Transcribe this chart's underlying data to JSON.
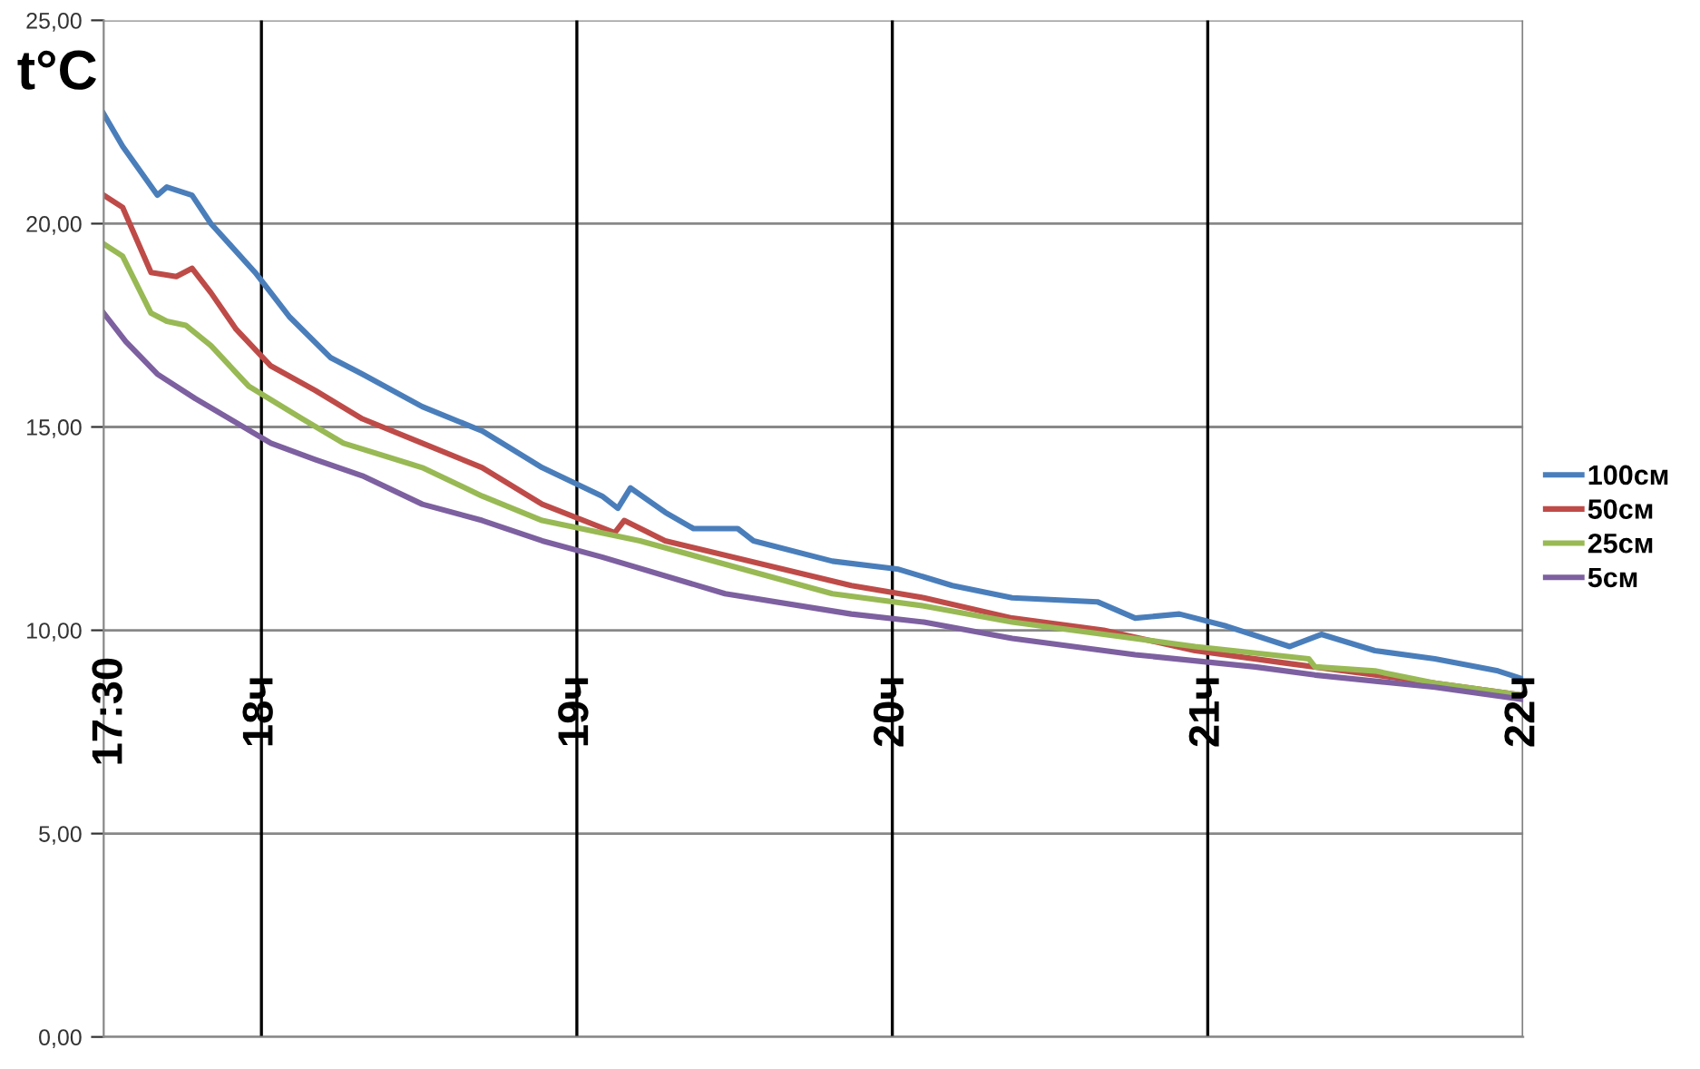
{
  "chart_data": {
    "type": "line",
    "ylabel": "t°C",
    "xlim": [
      17.5,
      22.0
    ],
    "ylim": [
      0,
      25
    ],
    "yticks": [
      {
        "value": 0,
        "label": "0,00"
      },
      {
        "value": 5,
        "label": "5,00"
      },
      {
        "value": 10,
        "label": "10,00"
      },
      {
        "value": 15,
        "label": "15,00"
      },
      {
        "value": 20,
        "label": "20,00"
      },
      {
        "value": 25,
        "label": "25,00"
      }
    ],
    "tick_labels": "y",
    "grid": "y",
    "legend": "right",
    "marker": "none",
    "line_style": "solid",
    "annotations": [
      "17:30"
    ],
    "ref_lines": [
      {
        "axis": "x",
        "value": 18,
        "label": "18ч",
        "color": "#000000"
      },
      {
        "axis": "x",
        "value": 19,
        "label": "19ч",
        "color": "#000000"
      },
      {
        "axis": "x",
        "value": 20,
        "label": "20ч",
        "color": "#000000"
      },
      {
        "axis": "x",
        "value": 21,
        "label": "21ч",
        "color": "#000000"
      },
      {
        "axis": "x",
        "value": 22,
        "label": "22ч",
        "color": "#808080"
      }
    ],
    "series": [
      {
        "name": "100см",
        "color": "#4a7ebb",
        "x": [
          17.5,
          17.56,
          17.67,
          17.7,
          17.78,
          17.84,
          17.98,
          18.09,
          18.22,
          18.32,
          18.51,
          18.7,
          18.89,
          19.08,
          19.13,
          19.17,
          19.28,
          19.37,
          19.51,
          19.56,
          19.81,
          20.02,
          20.19,
          20.38,
          20.65,
          20.77,
          20.91,
          21.06,
          21.26,
          21.36,
          21.53,
          21.72,
          21.92,
          22.0
        ],
        "values": [
          22.7,
          21.9,
          20.7,
          20.9,
          20.7,
          20.0,
          18.8,
          17.7,
          16.7,
          16.3,
          15.5,
          14.9,
          14.0,
          13.3,
          13.0,
          13.5,
          12.9,
          12.5,
          12.5,
          12.2,
          11.7,
          11.5,
          11.1,
          10.8,
          10.7,
          10.3,
          10.4,
          10.1,
          9.6,
          9.9,
          9.5,
          9.3,
          9.0,
          8.8
        ]
      },
      {
        "name": "50см",
        "color": "#be4b48",
        "x": [
          17.5,
          17.56,
          17.65,
          17.73,
          17.78,
          17.84,
          17.92,
          18.03,
          18.17,
          18.32,
          18.51,
          18.7,
          18.89,
          19.12,
          19.15,
          19.28,
          19.87,
          20.1,
          20.38,
          20.67,
          20.96,
          21.24,
          21.53,
          21.72,
          22.0
        ],
        "values": [
          20.7,
          20.4,
          18.8,
          18.7,
          18.9,
          18.3,
          17.4,
          16.5,
          15.9,
          15.2,
          14.6,
          14.0,
          13.1,
          12.4,
          12.7,
          12.2,
          11.1,
          10.8,
          10.3,
          10.0,
          9.5,
          9.2,
          8.9,
          8.7,
          8.4
        ]
      },
      {
        "name": "25см",
        "color": "#98b954",
        "x": [
          17.5,
          17.56,
          17.65,
          17.7,
          17.76,
          17.84,
          17.96,
          18.13,
          18.26,
          18.51,
          18.7,
          18.89,
          19.2,
          19.81,
          20.1,
          20.38,
          20.67,
          20.96,
          21.32,
          21.34,
          21.53,
          21.72,
          22.0
        ],
        "values": [
          19.5,
          19.2,
          17.8,
          17.6,
          17.5,
          17.0,
          16.0,
          15.2,
          14.6,
          14.0,
          13.3,
          12.7,
          12.2,
          10.9,
          10.6,
          10.2,
          9.9,
          9.6,
          9.3,
          9.1,
          9.0,
          8.7,
          8.4
        ]
      },
      {
        "name": "5см",
        "color": "#7d60a0",
        "x": [
          17.5,
          17.57,
          17.67,
          17.79,
          17.9,
          18.03,
          18.17,
          18.32,
          18.51,
          18.7,
          18.89,
          19.08,
          19.47,
          19.87,
          20.1,
          20.38,
          20.77,
          21.15,
          21.34,
          21.72,
          22.0
        ],
        "values": [
          17.8,
          17.1,
          16.3,
          15.7,
          15.2,
          14.6,
          14.2,
          13.8,
          13.1,
          12.7,
          12.2,
          11.8,
          10.9,
          10.4,
          10.2,
          9.8,
          9.4,
          9.1,
          8.9,
          8.6,
          8.3
        ]
      }
    ]
  }
}
